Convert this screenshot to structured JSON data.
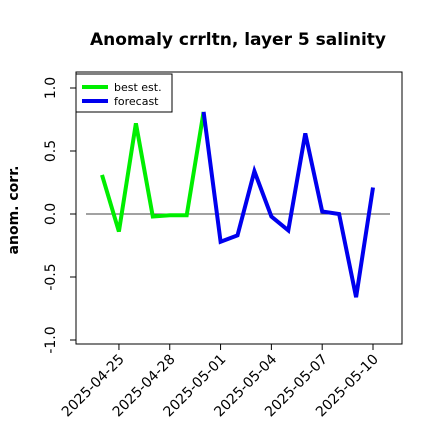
{
  "chart_data": {
    "type": "line",
    "title": "Anomaly crrltn, layer 5 salinity",
    "ylabel": "anom. corr.",
    "ylim": [
      -1.0,
      1.0
    ],
    "yticks": [
      "-1.0",
      "-0.5",
      "0.0",
      "0.5",
      "1.0"
    ],
    "ytick_values": [
      -1.0,
      -0.5,
      0.0,
      0.5,
      1.0
    ],
    "xtick_labels": [
      "2025-04-25",
      "2025-04-28",
      "2025-05-01",
      "2025-05-04",
      "2025-05-07",
      "2025-05-10"
    ],
    "xtick_colors": [
      "#000000",
      "#000000",
      "#228b22",
      "#000000",
      "#000000",
      "#000000"
    ],
    "x_start": "2025-04-24",
    "x_end": "2025-05-10",
    "zero_line": true,
    "grid": false,
    "legend_position": "top-left",
    "series": [
      {
        "name": "best est.",
        "color": "#00ee00",
        "x": [
          "2025-04-24",
          "2025-04-25",
          "2025-04-26",
          "2025-04-27",
          "2025-04-28",
          "2025-04-29",
          "2025-04-30"
        ],
        "values": [
          0.31,
          -0.14,
          0.72,
          -0.02,
          -0.01,
          -0.01,
          0.81
        ]
      },
      {
        "name": "forecast",
        "color": "#0000ee",
        "x": [
          "2025-04-30",
          "2025-05-01",
          "2025-05-02",
          "2025-05-03",
          "2025-05-04",
          "2025-05-05",
          "2025-05-06",
          "2025-05-07",
          "2025-05-08",
          "2025-05-09",
          "2025-05-10"
        ],
        "values": [
          0.81,
          -0.22,
          -0.17,
          0.34,
          -0.02,
          -0.13,
          0.64,
          0.02,
          0.0,
          -0.66,
          0.21
        ]
      }
    ]
  }
}
